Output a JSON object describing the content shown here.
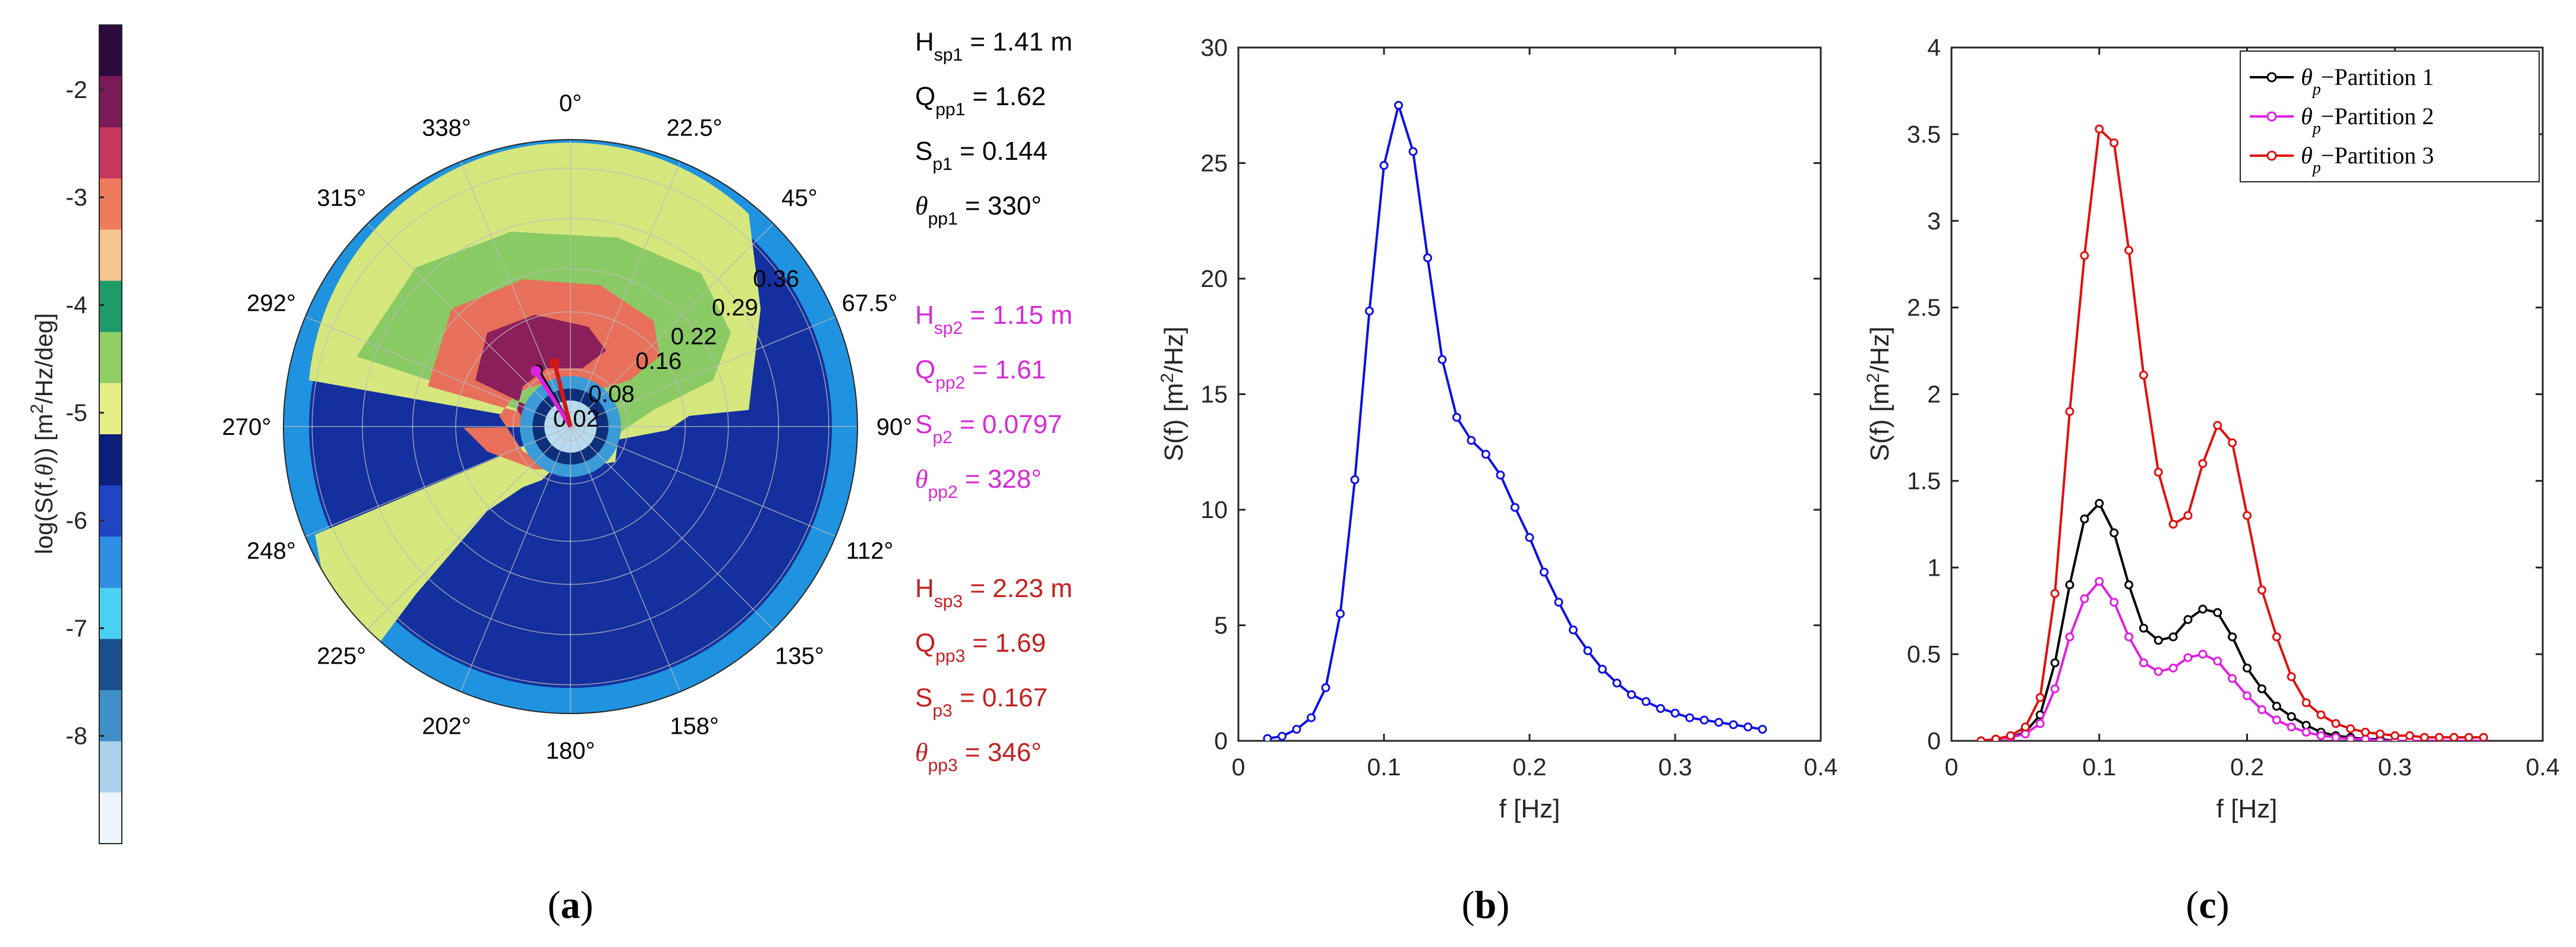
{
  "figure": {
    "panel_labels": [
      "a",
      "b",
      "c"
    ]
  },
  "colorbar": {
    "label": "log(S(f,θ)) [m²/Hz/deg]",
    "label_parts": {
      "pre": "log(S(f,",
      "theta": "θ",
      "post": ")) [m",
      "sup": "2",
      "tail": "/Hz/deg]"
    },
    "ticks": [
      "-2",
      "-3",
      "-4",
      "-5",
      "-6",
      "-7",
      "-8"
    ],
    "range": [
      -9,
      -1.4
    ],
    "colors": [
      "#2c0a3e",
      "#7a1a56",
      "#c7365e",
      "#ee7b5d",
      "#f6c48e",
      "#1e9a6b",
      "#8fce62",
      "#e6ee86",
      "#0b1e7a",
      "#1e46c4",
      "#2f8fe2",
      "#4ad0f2",
      "#1a4f8a",
      "#3f8fc9",
      "#a8d2ec",
      "#eef6fb"
    ]
  },
  "polar": {
    "direction_labels": [
      "0°",
      "22.5°",
      "45°",
      "67.5°",
      "90°",
      "112°",
      "135°",
      "158°",
      "180°",
      "202°",
      "225°",
      "248°",
      "270°",
      "292°",
      "315°",
      "338°"
    ],
    "direction_angles": [
      0,
      22.5,
      45,
      67.5,
      90,
      112.5,
      135,
      157.5,
      180,
      202.5,
      225,
      247.5,
      270,
      292.5,
      315,
      337.5
    ],
    "radial_labels": [
      "0.02",
      "0.08",
      "0.16",
      "0.22",
      "0.29",
      "0.36"
    ],
    "radial_values": [
      0.02,
      0.08,
      0.16,
      0.22,
      0.29,
      0.36
    ],
    "arrow_colors": [
      "#000000",
      "#e020e0",
      "#d01818"
    ]
  },
  "stats": [
    {
      "color": "#000000",
      "hs": "H",
      "hs_sub": "sp1",
      "hs_val": " = 1.41 m",
      "qp": "Q",
      "qp_sub": "pp1",
      "qp_val": " = 1.62",
      "sp": "S",
      "sp_sub": "p1",
      "sp_val": " = 0.144",
      "th": "θ",
      "th_sub": "pp1",
      "th_val": " = 330°"
    },
    {
      "color": "#d62ad6",
      "hs": "H",
      "hs_sub": "sp2",
      "hs_val": " = 1.15 m",
      "qp": "Q",
      "qp_sub": "pp2",
      "qp_val": " = 1.61",
      "sp": "S",
      "sp_sub": "p2",
      "sp_val": " = 0.0797",
      "th": "θ",
      "th_sub": "pp2",
      "th_val": " = 328°"
    },
    {
      "color": "#c42020",
      "hs": "H",
      "hs_sub": "sp3",
      "hs_val": " = 2.23 m",
      "qp": "Q",
      "qp_sub": "pp3",
      "qp_val": " = 1.69",
      "sp": "S",
      "sp_sub": "p3",
      "sp_val": " = 0.167",
      "th": "θ",
      "th_sub": "pp3",
      "th_val": " = 346°"
    }
  ],
  "chart_data": [
    {
      "type": "line",
      "panel": "b",
      "xlabel": "f [Hz]",
      "ylabel": "S(f) [m²/Hz]",
      "ylabel_parts": {
        "pre": "S(f)  [m",
        "sup": "2",
        "post": "/Hz]"
      },
      "xlim": [
        0,
        0.4
      ],
      "ylim": [
        0,
        30
      ],
      "xticks": [
        "0",
        "0.1",
        "0.2",
        "0.3",
        "0.4"
      ],
      "xtick_values": [
        0,
        0.1,
        0.2,
        0.3,
        0.4
      ],
      "yticks": [
        "0",
        "5",
        "10",
        "15",
        "20",
        "25",
        "30"
      ],
      "ytick_values": [
        0,
        5,
        10,
        15,
        20,
        25,
        30
      ],
      "series": [
        {
          "name": "S(f)",
          "color": "#1010e0",
          "x": [
            0.02,
            0.03,
            0.04,
            0.05,
            0.06,
            0.07,
            0.08,
            0.09,
            0.1,
            0.11,
            0.12,
            0.13,
            0.14,
            0.15,
            0.16,
            0.17,
            0.18,
            0.19,
            0.2,
            0.21,
            0.22,
            0.23,
            0.24,
            0.25,
            0.26,
            0.27,
            0.28,
            0.29,
            0.3,
            0.31,
            0.32,
            0.33,
            0.34,
            0.35,
            0.36
          ],
          "y": [
            0.1,
            0.2,
            0.5,
            1.0,
            2.3,
            5.5,
            11.3,
            18.6,
            24.9,
            27.5,
            25.5,
            20.9,
            16.5,
            14.0,
            13.0,
            12.4,
            11.5,
            10.1,
            8.8,
            7.3,
            6.0,
            4.8,
            3.9,
            3.1,
            2.5,
            2.0,
            1.7,
            1.4,
            1.2,
            1.0,
            0.9,
            0.8,
            0.7,
            0.6,
            0.5
          ]
        }
      ]
    },
    {
      "type": "line",
      "panel": "c",
      "xlabel": "f [Hz]",
      "ylabel": "S(f) [m²/Hz]",
      "ylabel_parts": {
        "pre": "S(f)  [m",
        "sup": "2",
        "post": "/Hz]"
      },
      "xlim": [
        0,
        0.4
      ],
      "ylim": [
        0,
        4
      ],
      "xticks": [
        "0",
        "0.1",
        "0.2",
        "0.3",
        "0.4"
      ],
      "xtick_values": [
        0,
        0.1,
        0.2,
        0.3,
        0.4
      ],
      "yticks": [
        "0",
        "0.5",
        "1",
        "1.5",
        "2",
        "2.5",
        "3",
        "3.5",
        "4"
      ],
      "ytick_values": [
        0,
        0.5,
        1,
        1.5,
        2,
        2.5,
        3,
        3.5,
        4
      ],
      "legend_position": "top-right",
      "series": [
        {
          "name": "θp−Partition 1",
          "theta": "θ",
          "sub": "p",
          "rest": "−Partition 1",
          "color": "#000000",
          "x": [
            0.02,
            0.03,
            0.04,
            0.05,
            0.06,
            0.07,
            0.08,
            0.09,
            0.1,
            0.11,
            0.12,
            0.13,
            0.14,
            0.15,
            0.16,
            0.17,
            0.18,
            0.19,
            0.2,
            0.21,
            0.22,
            0.23,
            0.24,
            0.25,
            0.26,
            0.27,
            0.28,
            0.29,
            0.3,
            0.31,
            0.32,
            0.33,
            0.34,
            0.35,
            0.36
          ],
          "y": [
            0.0,
            0.01,
            0.02,
            0.05,
            0.15,
            0.45,
            0.9,
            1.28,
            1.37,
            1.2,
            0.9,
            0.65,
            0.58,
            0.6,
            0.7,
            0.76,
            0.74,
            0.6,
            0.42,
            0.3,
            0.2,
            0.14,
            0.09,
            0.05,
            0.03,
            0.02,
            0.01,
            0.01,
            0.0,
            0.0,
            0.0,
            0.0,
            0.0,
            0.0,
            0.0
          ]
        },
        {
          "name": "θp−Partition 2",
          "theta": "θ",
          "sub": "p",
          "rest": "−Partition 2",
          "color": "#e020e0",
          "x": [
            0.02,
            0.03,
            0.04,
            0.05,
            0.06,
            0.07,
            0.08,
            0.09,
            0.1,
            0.11,
            0.12,
            0.13,
            0.14,
            0.15,
            0.16,
            0.17,
            0.18,
            0.19,
            0.2,
            0.21,
            0.22,
            0.23,
            0.24,
            0.25,
            0.26,
            0.27,
            0.28,
            0.29,
            0.3,
            0.31,
            0.32,
            0.33,
            0.34,
            0.35,
            0.36
          ],
          "y": [
            0.0,
            0.01,
            0.02,
            0.04,
            0.1,
            0.3,
            0.6,
            0.82,
            0.92,
            0.8,
            0.6,
            0.45,
            0.4,
            0.42,
            0.48,
            0.5,
            0.46,
            0.36,
            0.26,
            0.18,
            0.12,
            0.08,
            0.05,
            0.03,
            0.02,
            0.01,
            0.01,
            0.0,
            0.0,
            0.0,
            0.0,
            0.0,
            0.0,
            0.0,
            0.0
          ]
        },
        {
          "name": "θp−Partition 3",
          "theta": "θ",
          "sub": "p",
          "rest": "−Partition 3",
          "color": "#e01010",
          "x": [
            0.02,
            0.03,
            0.04,
            0.05,
            0.06,
            0.07,
            0.08,
            0.09,
            0.1,
            0.11,
            0.12,
            0.13,
            0.14,
            0.15,
            0.16,
            0.17,
            0.18,
            0.19,
            0.2,
            0.21,
            0.22,
            0.23,
            0.24,
            0.25,
            0.26,
            0.27,
            0.28,
            0.29,
            0.3,
            0.31,
            0.32,
            0.33,
            0.34,
            0.35,
            0.36
          ],
          "y": [
            0.0,
            0.01,
            0.03,
            0.08,
            0.25,
            0.85,
            1.9,
            2.8,
            3.53,
            3.45,
            2.83,
            2.11,
            1.55,
            1.25,
            1.3,
            1.6,
            1.82,
            1.72,
            1.3,
            0.87,
            0.6,
            0.37,
            0.22,
            0.15,
            0.1,
            0.07,
            0.05,
            0.04,
            0.03,
            0.03,
            0.02,
            0.02,
            0.02,
            0.02,
            0.02
          ]
        }
      ]
    }
  ]
}
